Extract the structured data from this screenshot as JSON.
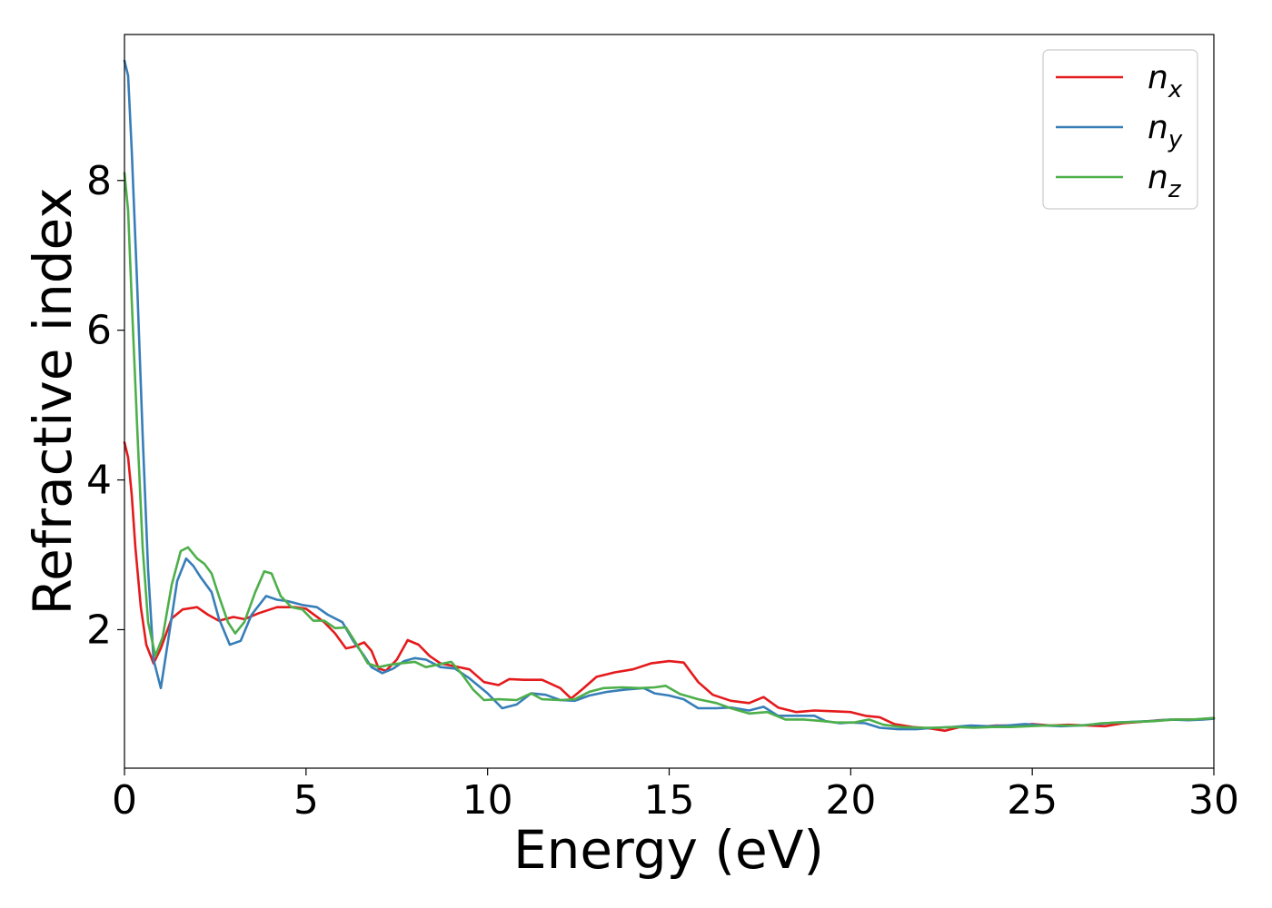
{
  "chart_data": {
    "type": "line",
    "title": "",
    "xlabel": "Energy (eV)",
    "ylabel": "Refractive index",
    "xlim": [
      0,
      30
    ],
    "ylim": [
      0.15,
      9.95
    ],
    "xticks": [
      0,
      5,
      10,
      15,
      20,
      25,
      30
    ],
    "yticks": [
      2,
      4,
      6,
      8
    ],
    "grid": false,
    "legend_position": "top-right",
    "series": [
      {
        "name": "n",
        "subscript": "x",
        "color": "#e41a1c",
        "points": [
          [
            0,
            4.5
          ],
          [
            0.1,
            4.3
          ],
          [
            0.2,
            3.8
          ],
          [
            0.3,
            3.1
          ],
          [
            0.45,
            2.3
          ],
          [
            0.6,
            1.8
          ],
          [
            0.8,
            1.55
          ],
          [
            1.0,
            1.75
          ],
          [
            1.3,
            2.15
          ],
          [
            1.6,
            2.27
          ],
          [
            2.0,
            2.3
          ],
          [
            2.3,
            2.2
          ],
          [
            2.6,
            2.12
          ],
          [
            3.0,
            2.17
          ],
          [
            3.3,
            2.14
          ],
          [
            3.7,
            2.22
          ],
          [
            4.2,
            2.3
          ],
          [
            4.7,
            2.3
          ],
          [
            5.0,
            2.28
          ],
          [
            5.5,
            2.1
          ],
          [
            5.8,
            1.95
          ],
          [
            6.1,
            1.75
          ],
          [
            6.3,
            1.77
          ],
          [
            6.6,
            1.83
          ],
          [
            6.8,
            1.72
          ],
          [
            7.0,
            1.48
          ],
          [
            7.2,
            1.45
          ],
          [
            7.5,
            1.6
          ],
          [
            7.8,
            1.86
          ],
          [
            8.1,
            1.8
          ],
          [
            8.4,
            1.65
          ],
          [
            8.7,
            1.55
          ],
          [
            9.0,
            1.52
          ],
          [
            9.5,
            1.47
          ],
          [
            9.9,
            1.3
          ],
          [
            10.3,
            1.26
          ],
          [
            10.6,
            1.34
          ],
          [
            11.0,
            1.33
          ],
          [
            11.5,
            1.33
          ],
          [
            12.0,
            1.22
          ],
          [
            12.3,
            1.08
          ],
          [
            12.6,
            1.2
          ],
          [
            13.0,
            1.37
          ],
          [
            13.5,
            1.43
          ],
          [
            14.0,
            1.47
          ],
          [
            14.5,
            1.55
          ],
          [
            15.0,
            1.58
          ],
          [
            15.4,
            1.56
          ],
          [
            15.8,
            1.3
          ],
          [
            16.2,
            1.13
          ],
          [
            16.7,
            1.05
          ],
          [
            17.2,
            1.02
          ],
          [
            17.6,
            1.1
          ],
          [
            18.0,
            0.96
          ],
          [
            18.5,
            0.9
          ],
          [
            19.0,
            0.92
          ],
          [
            19.5,
            0.91
          ],
          [
            20.0,
            0.9
          ],
          [
            20.4,
            0.85
          ],
          [
            20.8,
            0.83
          ],
          [
            21.2,
            0.74
          ],
          [
            21.7,
            0.7
          ],
          [
            22.2,
            0.68
          ],
          [
            22.6,
            0.65
          ],
          [
            23.0,
            0.7
          ],
          [
            23.5,
            0.7
          ],
          [
            24.0,
            0.72
          ],
          [
            24.5,
            0.72
          ],
          [
            25.0,
            0.74
          ],
          [
            25.5,
            0.72
          ],
          [
            26.0,
            0.73
          ],
          [
            26.5,
            0.72
          ],
          [
            27.0,
            0.71
          ],
          [
            27.5,
            0.75
          ],
          [
            28.0,
            0.77
          ],
          [
            28.5,
            0.79
          ],
          [
            29.0,
            0.8
          ],
          [
            29.5,
            0.8
          ],
          [
            30.0,
            0.82
          ]
        ]
      },
      {
        "name": "n",
        "subscript": "y",
        "color": "#377eb8",
        "points": [
          [
            0,
            9.6
          ],
          [
            0.1,
            9.4
          ],
          [
            0.2,
            8.4
          ],
          [
            0.35,
            6.6
          ],
          [
            0.5,
            4.6
          ],
          [
            0.65,
            2.8
          ],
          [
            0.8,
            1.6
          ],
          [
            1.0,
            1.22
          ],
          [
            1.2,
            1.85
          ],
          [
            1.45,
            2.65
          ],
          [
            1.7,
            2.95
          ],
          [
            1.9,
            2.85
          ],
          [
            2.1,
            2.7
          ],
          [
            2.4,
            2.5
          ],
          [
            2.6,
            2.15
          ],
          [
            2.9,
            1.8
          ],
          [
            3.2,
            1.85
          ],
          [
            3.5,
            2.2
          ],
          [
            3.9,
            2.45
          ],
          [
            4.2,
            2.4
          ],
          [
            4.5,
            2.38
          ],
          [
            4.9,
            2.33
          ],
          [
            5.3,
            2.3
          ],
          [
            5.6,
            2.2
          ],
          [
            6.0,
            2.1
          ],
          [
            6.3,
            1.85
          ],
          [
            6.6,
            1.65
          ],
          [
            6.8,
            1.5
          ],
          [
            7.1,
            1.42
          ],
          [
            7.4,
            1.48
          ],
          [
            7.7,
            1.58
          ],
          [
            8.0,
            1.62
          ],
          [
            8.3,
            1.6
          ],
          [
            8.7,
            1.5
          ],
          [
            9.1,
            1.48
          ],
          [
            9.5,
            1.35
          ],
          [
            10.0,
            1.15
          ],
          [
            10.4,
            0.95
          ],
          [
            10.8,
            1.0
          ],
          [
            11.2,
            1.15
          ],
          [
            11.6,
            1.13
          ],
          [
            12.0,
            1.06
          ],
          [
            12.4,
            1.05
          ],
          [
            12.8,
            1.12
          ],
          [
            13.3,
            1.17
          ],
          [
            13.8,
            1.2
          ],
          [
            14.3,
            1.22
          ],
          [
            14.6,
            1.15
          ],
          [
            15.0,
            1.12
          ],
          [
            15.4,
            1.07
          ],
          [
            15.8,
            0.95
          ],
          [
            16.3,
            0.95
          ],
          [
            16.7,
            0.96
          ],
          [
            17.2,
            0.92
          ],
          [
            17.6,
            0.97
          ],
          [
            18.0,
            0.85
          ],
          [
            18.5,
            0.85
          ],
          [
            19.0,
            0.85
          ],
          [
            19.3,
            0.78
          ],
          [
            19.7,
            0.75
          ],
          [
            20.0,
            0.76
          ],
          [
            20.4,
            0.75
          ],
          [
            20.8,
            0.69
          ],
          [
            21.3,
            0.67
          ],
          [
            21.8,
            0.67
          ],
          [
            22.3,
            0.69
          ],
          [
            22.8,
            0.7
          ],
          [
            23.3,
            0.72
          ],
          [
            23.8,
            0.71
          ],
          [
            24.3,
            0.72
          ],
          [
            24.8,
            0.74
          ],
          [
            25.3,
            0.72
          ],
          [
            25.8,
            0.71
          ],
          [
            26.3,
            0.72
          ],
          [
            26.8,
            0.74
          ],
          [
            27.3,
            0.76
          ],
          [
            27.8,
            0.77
          ],
          [
            28.3,
            0.78
          ],
          [
            28.8,
            0.8
          ],
          [
            29.3,
            0.79
          ],
          [
            29.7,
            0.8
          ],
          [
            30.0,
            0.81
          ]
        ]
      },
      {
        "name": "n",
        "subscript": "z",
        "color": "#4daf4a",
        "points": [
          [
            0,
            8.1
          ],
          [
            0.1,
            7.6
          ],
          [
            0.2,
            6.4
          ],
          [
            0.35,
            4.7
          ],
          [
            0.5,
            3.1
          ],
          [
            0.65,
            2.1
          ],
          [
            0.85,
            1.65
          ],
          [
            1.05,
            1.9
          ],
          [
            1.3,
            2.6
          ],
          [
            1.55,
            3.05
          ],
          [
            1.75,
            3.1
          ],
          [
            2.0,
            2.95
          ],
          [
            2.2,
            2.88
          ],
          [
            2.4,
            2.75
          ],
          [
            2.6,
            2.45
          ],
          [
            2.85,
            2.1
          ],
          [
            3.05,
            1.95
          ],
          [
            3.3,
            2.1
          ],
          [
            3.6,
            2.5
          ],
          [
            3.85,
            2.78
          ],
          [
            4.05,
            2.75
          ],
          [
            4.3,
            2.45
          ],
          [
            4.6,
            2.3
          ],
          [
            4.9,
            2.27
          ],
          [
            5.2,
            2.12
          ],
          [
            5.5,
            2.12
          ],
          [
            5.8,
            2.02
          ],
          [
            6.1,
            2.03
          ],
          [
            6.4,
            1.8
          ],
          [
            6.7,
            1.55
          ],
          [
            7.0,
            1.5
          ],
          [
            7.3,
            1.53
          ],
          [
            7.6,
            1.55
          ],
          [
            8.0,
            1.57
          ],
          [
            8.3,
            1.5
          ],
          [
            8.6,
            1.53
          ],
          [
            9.0,
            1.57
          ],
          [
            9.3,
            1.4
          ],
          [
            9.6,
            1.2
          ],
          [
            9.9,
            1.06
          ],
          [
            10.3,
            1.07
          ],
          [
            10.8,
            1.06
          ],
          [
            11.2,
            1.15
          ],
          [
            11.5,
            1.07
          ],
          [
            12.0,
            1.06
          ],
          [
            12.4,
            1.07
          ],
          [
            12.8,
            1.17
          ],
          [
            13.2,
            1.22
          ],
          [
            13.7,
            1.23
          ],
          [
            14.2,
            1.22
          ],
          [
            14.6,
            1.23
          ],
          [
            14.9,
            1.25
          ],
          [
            15.3,
            1.14
          ],
          [
            15.8,
            1.07
          ],
          [
            16.3,
            1.02
          ],
          [
            16.7,
            0.95
          ],
          [
            17.2,
            0.88
          ],
          [
            17.7,
            0.9
          ],
          [
            18.2,
            0.8
          ],
          [
            18.7,
            0.8
          ],
          [
            19.2,
            0.78
          ],
          [
            19.6,
            0.76
          ],
          [
            20.1,
            0.76
          ],
          [
            20.5,
            0.8
          ],
          [
            20.9,
            0.73
          ],
          [
            21.4,
            0.7
          ],
          [
            21.9,
            0.69
          ],
          [
            22.4,
            0.69
          ],
          [
            22.9,
            0.7
          ],
          [
            23.4,
            0.69
          ],
          [
            23.9,
            0.7
          ],
          [
            24.4,
            0.7
          ],
          [
            24.9,
            0.71
          ],
          [
            25.4,
            0.72
          ],
          [
            25.9,
            0.72
          ],
          [
            26.4,
            0.72
          ],
          [
            26.9,
            0.75
          ],
          [
            27.4,
            0.76
          ],
          [
            27.9,
            0.77
          ],
          [
            28.4,
            0.78
          ],
          [
            28.9,
            0.8
          ],
          [
            29.4,
            0.8
          ],
          [
            30.0,
            0.82
          ]
        ]
      }
    ]
  }
}
